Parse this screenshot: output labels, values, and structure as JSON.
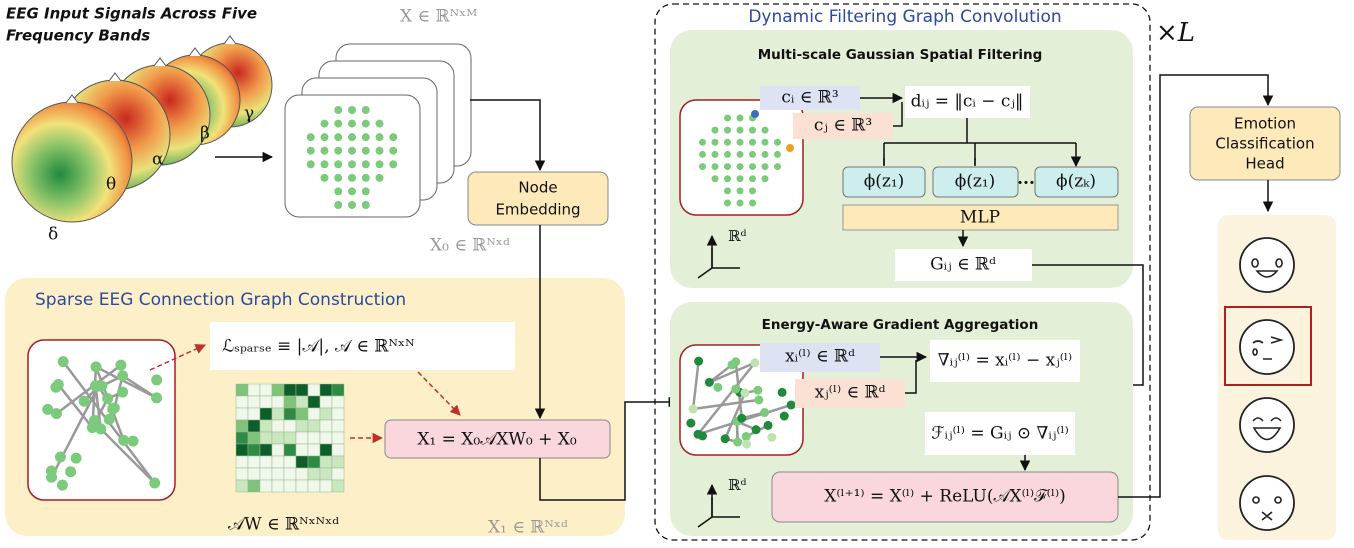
{
  "input": {
    "title_lines": [
      "EEG Input Signals Across Five",
      "Frequency Bands"
    ],
    "bands": [
      "δ",
      "θ",
      "α",
      "β",
      "γ"
    ],
    "shape_label": "X ∈ ℝᴺˣᴹ"
  },
  "node_embedding": {
    "lines": [
      "Node",
      "Embedding"
    ],
    "output_label": "X₀ ∈ ℝᴺˣᵈ"
  },
  "sparse_graph": {
    "title": "Sparse EEG Connection Graph Construction",
    "loss": "ℒₛₚₐᵣₛₑ ≡ |𝒜|, 𝒜 ∈ ℝᴺˣᴺ",
    "matrix_label": "𝒜W ∈ ℝᴺˣᴺˣᵈ",
    "update": "X₁ = X₀𝒜XW₀ + X₀",
    "output_label": "X₁ ∈ ℝᴺˣᵈ"
  },
  "dfgc": {
    "title": "Dynamic Filtering Graph Convolution",
    "repeat": "×L",
    "gaussian": {
      "title": "Multi-scale Gaussian Spatial Filtering",
      "ci": "cᵢ ∈ ℝ³",
      "cj": "cⱼ ∈ ℝ³",
      "distance": "dᵢⱼ = ‖cᵢ − cⱼ‖",
      "kernels": [
        "ϕ(z₁)",
        "ϕ(z₁)",
        "ϕ(zₖ)"
      ],
      "ellipsis": "···",
      "mlp": "MLP",
      "space": "ℝᵈ",
      "output": "Gᵢⱼ ∈ ℝᵈ"
    },
    "energy": {
      "title": "Energy-Aware Gradient Aggregation",
      "xi": "xᵢ⁽ˡ⁾ ∈ ℝᵈ",
      "xj": "xⱼ⁽ˡ⁾ ∈ ℝᵈ",
      "gradient": "∇ᵢⱼ⁽ˡ⁾ = xᵢ⁽ˡ⁾ − xⱼ⁽ˡ⁾",
      "filtered": "ℱᵢⱼ⁽ˡ⁾ = Gᵢⱼ ⊙ ∇ᵢⱼ⁽ˡ⁾",
      "space": "ℝᵈ",
      "update": "X⁽ˡ⁺¹⁾ = X⁽ˡ⁾ + ReLU(𝒜X⁽ˡ⁾ℱ⁽ˡ⁾)"
    }
  },
  "head": {
    "lines": [
      "Emotion",
      "Classification",
      "Head"
    ]
  }
}
